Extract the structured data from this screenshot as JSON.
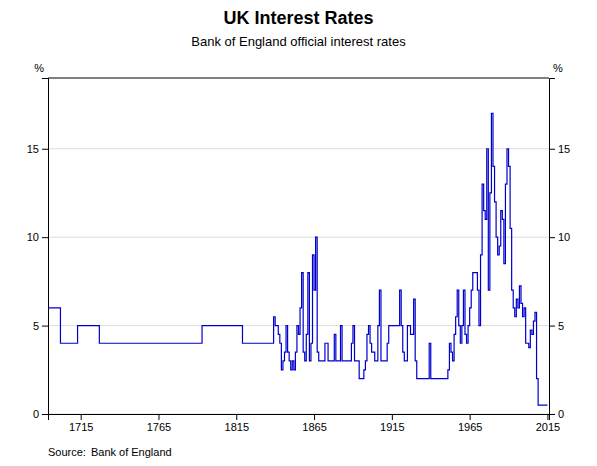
{
  "chart_data": {
    "type": "step",
    "title": "UK Interest Rates",
    "subtitle": "Bank of England official interest rates",
    "ylabel": "%",
    "y2label": "%",
    "annotations": [
      "Source:",
      "Bank of England"
    ],
    "color": "#0000CD",
    "grid": true,
    "xlim": [
      1694,
      2016
    ],
    "xticks": [
      1715,
      1765,
      1815,
      1865,
      1915,
      1965,
      2015
    ],
    "ylim": [
      0,
      19
    ],
    "yticks": [
      0,
      5,
      10,
      15
    ],
    "y2lim": [
      0,
      19
    ],
    "y2ticks": [
      0,
      5,
      10,
      15
    ],
    "x": [
      1694,
      1695,
      1696,
      1697,
      1698,
      1699,
      1700,
      1701,
      1702,
      1703,
      1704,
      1705,
      1706,
      1707,
      1708,
      1709,
      1710,
      1711,
      1712,
      1713,
      1714,
      1715,
      1716,
      1717,
      1718,
      1719,
      1720,
      1721,
      1722,
      1723,
      1724,
      1725,
      1726,
      1727,
      1728,
      1729,
      1730,
      1731,
      1732,
      1733,
      1734,
      1735,
      1736,
      1737,
      1738,
      1739,
      1740,
      1741,
      1742,
      1743,
      1744,
      1745,
      1746,
      1747,
      1748,
      1749,
      1750,
      1751,
      1752,
      1753,
      1754,
      1755,
      1756,
      1757,
      1758,
      1759,
      1760,
      1761,
      1762,
      1763,
      1764,
      1765,
      1766,
      1767,
      1768,
      1769,
      1770,
      1771,
      1772,
      1773,
      1774,
      1775,
      1776,
      1777,
      1778,
      1779,
      1780,
      1781,
      1782,
      1783,
      1784,
      1785,
      1786,
      1787,
      1788,
      1789,
      1790,
      1791,
      1792,
      1793,
      1794,
      1795,
      1796,
      1797,
      1798,
      1799,
      1800,
      1801,
      1802,
      1803,
      1804,
      1805,
      1806,
      1807,
      1808,
      1809,
      1810,
      1811,
      1812,
      1813,
      1814,
      1815,
      1816,
      1817,
      1818,
      1819,
      1820,
      1821,
      1822,
      1823,
      1824,
      1825,
      1826,
      1827,
      1828,
      1829,
      1830,
      1831,
      1832,
      1833,
      1834,
      1835,
      1836,
      1837,
      1838,
      1839,
      1840,
      1841,
      1842,
      1843,
      1844,
      1845,
      1846,
      1847,
      1848,
      1849,
      1850,
      1851,
      1852,
      1853,
      1854,
      1855,
      1856,
      1857,
      1858,
      1859,
      1860,
      1861,
      1862,
      1863,
      1864,
      1865,
      1866,
      1867,
      1868,
      1869,
      1870,
      1871,
      1872,
      1873,
      1874,
      1875,
      1876,
      1877,
      1878,
      1879,
      1880,
      1881,
      1882,
      1883,
      1884,
      1885,
      1886,
      1887,
      1888,
      1889,
      1890,
      1891,
      1892,
      1893,
      1894,
      1895,
      1896,
      1897,
      1898,
      1899,
      1900,
      1901,
      1902,
      1903,
      1904,
      1905,
      1906,
      1907,
      1908,
      1909,
      1910,
      1911,
      1912,
      1913,
      1914,
      1915,
      1916,
      1917,
      1918,
      1919,
      1920,
      1921,
      1922,
      1923,
      1924,
      1925,
      1926,
      1927,
      1928,
      1929,
      1930,
      1931,
      1932,
      1933,
      1934,
      1935,
      1936,
      1937,
      1938,
      1939,
      1940,
      1941,
      1942,
      1943,
      1944,
      1945,
      1946,
      1947,
      1948,
      1949,
      1950,
      1951,
      1952,
      1953,
      1954,
      1955,
      1956,
      1957,
      1958,
      1959,
      1960,
      1961,
      1962,
      1963,
      1964,
      1965,
      1966,
      1967,
      1968,
      1969,
      1970,
      1971,
      1972,
      1973,
      1974,
      1975,
      1976,
      1977,
      1978,
      1979,
      1980,
      1981,
      1982,
      1983,
      1984,
      1985,
      1986,
      1987,
      1988,
      1989,
      1990,
      1991,
      1992,
      1993,
      1994,
      1995,
      1996,
      1997,
      1998,
      1999,
      2000,
      2001,
      2002,
      2003,
      2004,
      2005,
      2006,
      2007,
      2008,
      2009,
      2010,
      2011,
      2012,
      2013,
      2014,
      2015
    ],
    "values": [
      6,
      6,
      6,
      6,
      6,
      6,
      6,
      6,
      4,
      4,
      4,
      4,
      4,
      4,
      4,
      4,
      4,
      4,
      4,
      5,
      5,
      5,
      5,
      5,
      5,
      5,
      5,
      5,
      5,
      5,
      5,
      5,
      5,
      4,
      4,
      4,
      4,
      4,
      4,
      4,
      4,
      4,
      4,
      4,
      4,
      4,
      4,
      4,
      4,
      4,
      4,
      4,
      4,
      4,
      4,
      4,
      4,
      4,
      4,
      4,
      4,
      4,
      4,
      4,
      4,
      4,
      4,
      4,
      4,
      4,
      4,
      4,
      4,
      4,
      4,
      4,
      4,
      4,
      4,
      4,
      4,
      4,
      4,
      4,
      4,
      4,
      4,
      4,
      4,
      4,
      4,
      4,
      4,
      4,
      4,
      4,
      4,
      4,
      4,
      5,
      5,
      5,
      5,
      5,
      5,
      5,
      5,
      5,
      5,
      5,
      5,
      5,
      5,
      5,
      5,
      5,
      5,
      5,
      5,
      5,
      5,
      5,
      5,
      5,
      5,
      4,
      4,
      4,
      4,
      4,
      4,
      4,
      4,
      4,
      4,
      4,
      4,
      4,
      4,
      4,
      4,
      4,
      4,
      4,
      4,
      5.5,
      5,
      5,
      4.5,
      4,
      2.5,
      3,
      3.5,
      5,
      3.5,
      3,
      2.5,
      3,
      2.5,
      3.5,
      5,
      4.5,
      6,
      8,
      3.5,
      3,
      4.5,
      8,
      3,
      4,
      9,
      7,
      10,
      3.5,
      3,
      3,
      3,
      3,
      4,
      4,
      3,
      3,
      3,
      3,
      4.5,
      3,
      3,
      3,
      5,
      3,
      3,
      3,
      3,
      3,
      3,
      4,
      5,
      3,
      3,
      3,
      2,
      2,
      2,
      2.5,
      3,
      4.5,
      5,
      4,
      3.5,
      3.5,
      3,
      3,
      5,
      7,
      3,
      3,
      3,
      3,
      4,
      5,
      5,
      5,
      5,
      5,
      5,
      5,
      7,
      5,
      3.5,
      3,
      3,
      5,
      5,
      4.5,
      4.5,
      6.5,
      3,
      2,
      2,
      2,
      2,
      2,
      2,
      2,
      2,
      4,
      2,
      2,
      2,
      2,
      2,
      2,
      2,
      2,
      2,
      2,
      2,
      2.5,
      4,
      3.5,
      3,
      4.5,
      5.5,
      7,
      5,
      4,
      5,
      7,
      4.5,
      4,
      5,
      6,
      7,
      8,
      8,
      8,
      7,
      5,
      9,
      13,
      11.5,
      11,
      15,
      7,
      12.5,
      17,
      14,
      12,
      10,
      9,
      9.5,
      11.5,
      11,
      8.5,
      13,
      15,
      14,
      10.5,
      7,
      6,
      5.5,
      6.5,
      6,
      7.25,
      6.25,
      5.5,
      6,
      4,
      4,
      3.75,
      4.75,
      4.5,
      5.25,
      5.75,
      2,
      0.5,
      0.5,
      0.5,
      0.5,
      0.5,
      0.5,
      0.5
    ]
  }
}
